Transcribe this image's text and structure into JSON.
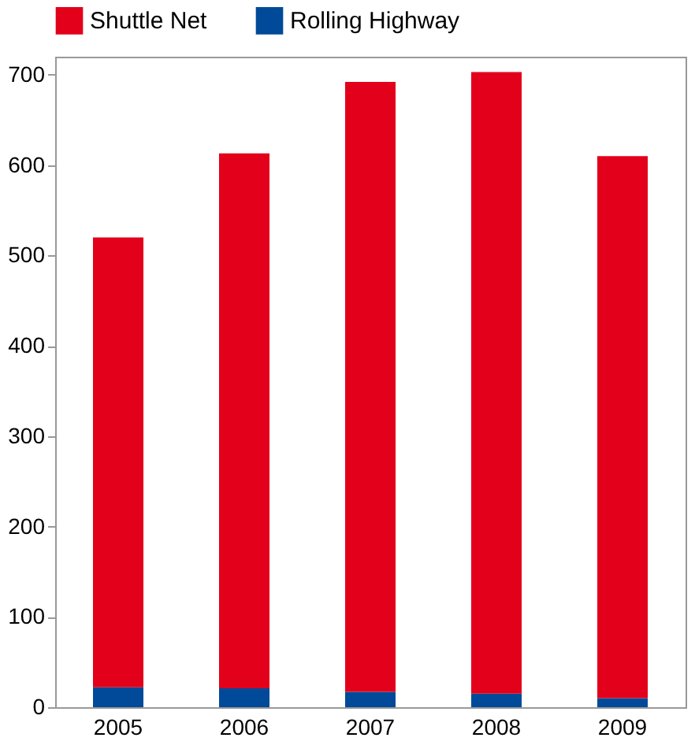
{
  "chart_data": {
    "type": "bar",
    "stacked": true,
    "categories": [
      "2005",
      "2006",
      "2007",
      "2008",
      "2009"
    ],
    "series": [
      {
        "name": "Rolling Highway",
        "color": "#004a99",
        "values": [
          22,
          21,
          17,
          15,
          10
        ]
      },
      {
        "name": "Shuttle Net",
        "color": "#e2001a",
        "values": [
          498,
          592,
          675,
          688,
          600
        ]
      }
    ],
    "ylim": [
      0,
      720
    ],
    "yticks": [
      0,
      100,
      200,
      300,
      400,
      500,
      600,
      700
    ],
    "grid": false,
    "legend": "top left"
  }
}
